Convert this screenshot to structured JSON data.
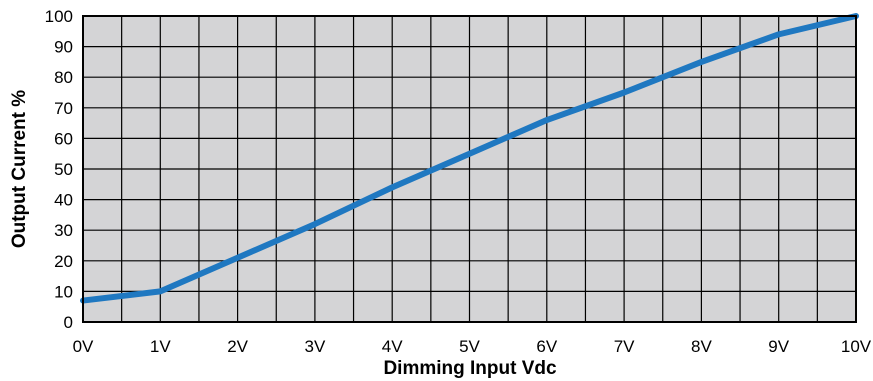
{
  "chart_data": {
    "type": "line",
    "title": "",
    "xlabel": "Dimming Input Vdc",
    "ylabel": "Output Current %",
    "x": [
      0,
      1,
      2,
      3,
      4,
      5,
      6,
      7,
      8,
      9,
      10
    ],
    "x_tick_labels": [
      "0V",
      "1V",
      "2V",
      "3V",
      "4V",
      "5V",
      "6V",
      "7V",
      "8V",
      "9V",
      "10V"
    ],
    "y_ticks": [
      0,
      10,
      20,
      30,
      40,
      50,
      60,
      70,
      80,
      90,
      100
    ],
    "xlim": [
      0,
      10
    ],
    "ylim": [
      0,
      100
    ],
    "grid": true,
    "minor_x_grid": true,
    "series": [
      {
        "values": [
          7,
          10,
          21,
          32,
          44,
          55,
          66,
          75,
          85,
          94,
          100
        ]
      }
    ],
    "colors": {
      "line": "#1f78c1",
      "plot_background": "#d4d4d6",
      "grid": "#000000"
    }
  }
}
